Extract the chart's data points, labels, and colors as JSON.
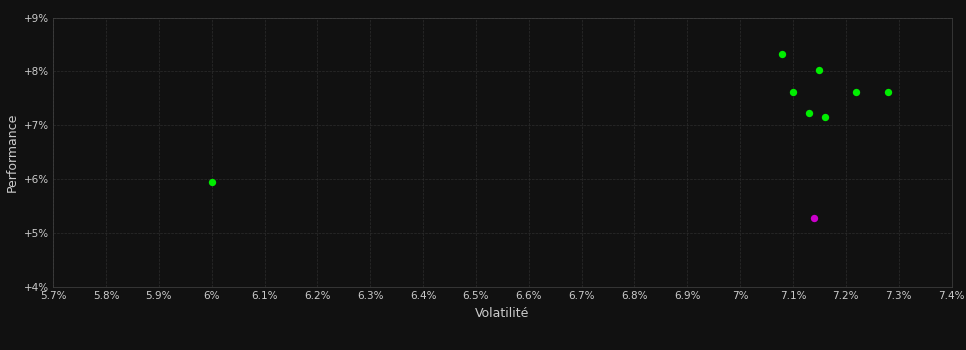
{
  "background_color": "#111111",
  "text_color": "#cccccc",
  "xlabel": "Volatilité",
  "ylabel": "Performance",
  "xlim": [
    0.057,
    0.074
  ],
  "ylim": [
    0.04,
    0.09
  ],
  "green_points_xy": [
    [
      0.06,
      0.0595
    ],
    [
      0.0708,
      0.0832
    ],
    [
      0.0715,
      0.0802
    ],
    [
      0.071,
      0.0762
    ],
    [
      0.0713,
      0.0722
    ],
    [
      0.0716,
      0.0715
    ],
    [
      0.0722,
      0.0762
    ],
    [
      0.0728,
      0.0762
    ]
  ],
  "magenta_points_xy": [
    [
      0.0714,
      0.0528
    ]
  ],
  "point_size": 28,
  "green_color": "#00ee00",
  "magenta_color": "#cc00cc",
  "grid_color": "#2d2d2d",
  "spine_color": "#444444"
}
